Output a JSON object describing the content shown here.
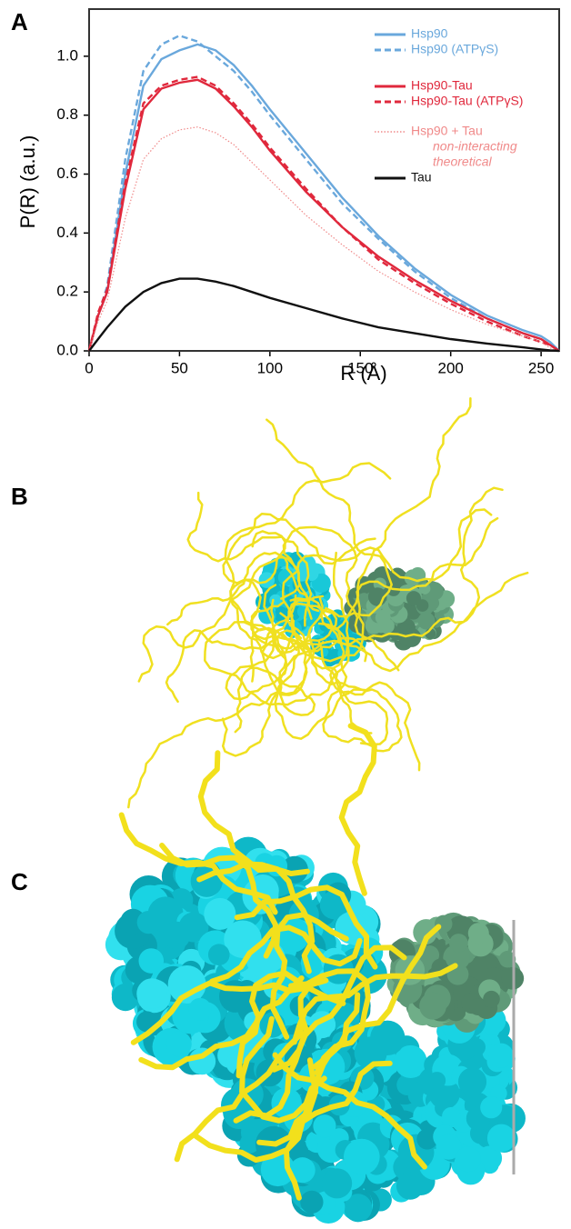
{
  "panel_labels": [
    "A",
    "B",
    "C"
  ],
  "chart_data": {
    "type": "line",
    "xlabel": "R (Å)",
    "ylabel": "P(R) (a.u.)",
    "xlim": [
      0,
      260
    ],
    "ylim": [
      0,
      1.16
    ],
    "xticks": [
      0,
      50,
      100,
      150,
      200,
      250
    ],
    "yticks": [
      {
        "value": 0,
        "label": "0.0"
      },
      0.2,
      0.4,
      0.6,
      0.8,
      {
        "value": 1,
        "label": "1.0"
      }
    ],
    "x": [
      0,
      5,
      10,
      20,
      30,
      40,
      50,
      60,
      70,
      80,
      90,
      100,
      120,
      140,
      160,
      180,
      200,
      220,
      240,
      250,
      255,
      260
    ],
    "series": [
      {
        "name": "Hsp90",
        "color": "#6aa8dc",
        "dash": "solid",
        "values": [
          0,
          0.12,
          0.2,
          0.6,
          0.9,
          0.99,
          1.02,
          1.04,
          1.02,
          0.97,
          0.9,
          0.82,
          0.67,
          0.52,
          0.39,
          0.28,
          0.19,
          0.12,
          0.07,
          0.05,
          0.03,
          0
        ]
      },
      {
        "name": "Hsp90 (ATPγS)",
        "color": "#6aa8dc",
        "dash": "dashed",
        "values": [
          0,
          0.12,
          0.22,
          0.65,
          0.95,
          1.04,
          1.07,
          1.05,
          1.0,
          0.95,
          0.88,
          0.8,
          0.65,
          0.5,
          0.38,
          0.27,
          0.18,
          0.11,
          0.06,
          0.04,
          0.02,
          0
        ]
      },
      {
        "name": "Hsp90-Tau",
        "color": "#e0283c",
        "dash": "solid",
        "values": [
          0,
          0.12,
          0.2,
          0.55,
          0.82,
          0.89,
          0.91,
          0.92,
          0.89,
          0.83,
          0.76,
          0.68,
          0.54,
          0.42,
          0.32,
          0.24,
          0.17,
          0.11,
          0.06,
          0.04,
          0.02,
          0
        ]
      },
      {
        "name": "Hsp90-Tau (ATPγS)",
        "color": "#e0283c",
        "dash": "dashed",
        "values": [
          0,
          0.13,
          0.21,
          0.57,
          0.84,
          0.9,
          0.92,
          0.93,
          0.9,
          0.84,
          0.77,
          0.69,
          0.55,
          0.42,
          0.31,
          0.23,
          0.16,
          0.1,
          0.05,
          0.03,
          0.02,
          0
        ]
      },
      {
        "name": "Hsp90 + Tau",
        "color": "#f08a8a",
        "dash": "dotted",
        "values": [
          0,
          0.1,
          0.17,
          0.45,
          0.65,
          0.72,
          0.75,
          0.76,
          0.74,
          0.7,
          0.64,
          0.58,
          0.46,
          0.36,
          0.27,
          0.2,
          0.14,
          0.09,
          0.05,
          0.03,
          0.01,
          0
        ]
      },
      {
        "name": "Tau",
        "color": "#111111",
        "dash": "solid",
        "values": [
          0,
          0.04,
          0.08,
          0.15,
          0.2,
          0.23,
          0.245,
          0.245,
          0.235,
          0.22,
          0.2,
          0.18,
          0.145,
          0.11,
          0.08,
          0.06,
          0.04,
          0.025,
          0.012,
          0.005,
          0.002,
          0
        ]
      }
    ],
    "legend_note": [
      "non-interacting",
      "theoretical"
    ]
  }
}
